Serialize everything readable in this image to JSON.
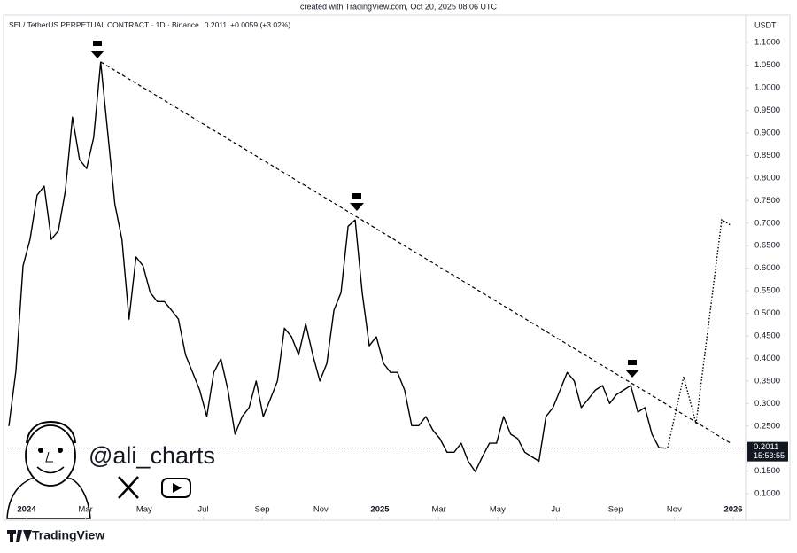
{
  "chart_data": {
    "type": "line",
    "header": "created with TradingView.com, Oct 20, 2025 08:06 UTC",
    "title": "SEI / TetherUS PERPETUAL CONTRACT · 1D · Binance",
    "last_price": 0.2011,
    "change": "+0.0059 (+3.02%)",
    "countdown": "15:53:55",
    "y_label": "USDT",
    "watermark": "@ali_charts",
    "brand": "TradingView",
    "color": "#000000",
    "x": [
      2023.95,
      2023.97,
      2023.99,
      2024.01,
      2024.03,
      2024.05,
      2024.07,
      2024.09,
      2024.11,
      2024.13,
      2024.15,
      2024.17,
      2024.19,
      2024.21,
      2024.23,
      2024.25,
      2024.27,
      2024.29,
      2024.31,
      2024.33,
      2024.35,
      2024.37,
      2024.39,
      2024.41,
      2024.43,
      2024.45,
      2024.47,
      2024.49,
      2024.51,
      2024.53,
      2024.55,
      2024.57,
      2024.59,
      2024.61,
      2024.63,
      2024.65,
      2024.67,
      2024.69,
      2024.71,
      2024.73,
      2024.75,
      2024.77,
      2024.79,
      2024.81,
      2024.83,
      2024.85,
      2024.87,
      2024.89,
      2024.91,
      2024.93,
      2024.95,
      2024.97,
      2024.99,
      2025.01,
      2025.03,
      2025.05,
      2025.07,
      2025.09,
      2025.11,
      2025.13,
      2025.15,
      2025.17,
      2025.19,
      2025.21,
      2025.23,
      2025.25,
      2025.27,
      2025.29,
      2025.31,
      2025.33,
      2025.35,
      2025.37,
      2025.39,
      2025.41,
      2025.43,
      2025.45,
      2025.47,
      2025.49,
      2025.51,
      2025.53,
      2025.55,
      2025.57,
      2025.59,
      2025.61,
      2025.63,
      2025.65,
      2025.67,
      2025.69,
      2025.71,
      2025.73,
      2025.75,
      2025.77,
      2025.79,
      2025.81
    ],
    "values": [
      0.25,
      0.373,
      0.605,
      0.664,
      0.762,
      0.782,
      0.664,
      0.683,
      0.772,
      0.935,
      0.841,
      0.821,
      0.89,
      1.057,
      0.9,
      0.742,
      0.664,
      0.487,
      0.625,
      0.605,
      0.546,
      0.526,
      0.526,
      0.507,
      0.487,
      0.408,
      0.369,
      0.33,
      0.271,
      0.369,
      0.399,
      0.33,
      0.232,
      0.271,
      0.291,
      0.35,
      0.271,
      0.31,
      0.35,
      0.467,
      0.448,
      0.408,
      0.477,
      0.408,
      0.35,
      0.389,
      0.507,
      0.546,
      0.693,
      0.707,
      0.546,
      0.428,
      0.448,
      0.389,
      0.369,
      0.369,
      0.33,
      0.251,
      0.251,
      0.271,
      0.241,
      0.222,
      0.192,
      0.192,
      0.212,
      0.172,
      0.149,
      0.182,
      0.212,
      0.212,
      0.271,
      0.232,
      0.222,
      0.192,
      0.182,
      0.172,
      0.271,
      0.291,
      0.33,
      0.369,
      0.35,
      0.291,
      0.31,
      0.33,
      0.34,
      0.3,
      0.32,
      0.33,
      0.34,
      0.281,
      0.291,
      0.232,
      0.202,
      0.2011
    ],
    "xlim": [
      2023.945,
      2026.03
    ],
    "xticks": [
      {
        "value": 2024,
        "label": "2024"
      },
      {
        "value": 2024.167,
        "label": "Mar"
      },
      {
        "value": 2024.333,
        "label": "May"
      },
      {
        "value": 2024.5,
        "label": "Jul"
      },
      {
        "value": 2024.667,
        "label": "Sep"
      },
      {
        "value": 2024.833,
        "label": "Nov"
      },
      {
        "value": 2025,
        "label": "2025"
      },
      {
        "value": 2025.167,
        "label": "Mar"
      },
      {
        "value": 2025.333,
        "label": "May"
      },
      {
        "value": 2025.5,
        "label": "Jul"
      },
      {
        "value": 2025.667,
        "label": "Sep"
      },
      {
        "value": 2025.833,
        "label": "Nov"
      },
      {
        "value": 2026,
        "label": "2026"
      }
    ],
    "ylim": [
      0.055,
      1.126
    ],
    "yticks": [
      {
        "value": 0.1,
        "label": "0.1000"
      },
      {
        "value": 0.15,
        "label": "0.1500"
      },
      {
        "value": 0.25,
        "label": "0.2500"
      },
      {
        "value": 0.3,
        "label": "0.3000"
      },
      {
        "value": 0.35,
        "label": "0.3500"
      },
      {
        "value": 0.4,
        "label": "0.4000"
      },
      {
        "value": 0.45,
        "label": "0.4500"
      },
      {
        "value": 0.5,
        "label": "0.5000"
      },
      {
        "value": 0.55,
        "label": "0.5500"
      },
      {
        "value": 0.6,
        "label": "0.6000"
      },
      {
        "value": 0.65,
        "label": "0.6500"
      },
      {
        "value": 0.7,
        "label": "0.7000"
      },
      {
        "value": 0.75,
        "label": "0.7500"
      },
      {
        "value": 0.8,
        "label": "0.8000"
      },
      {
        "value": 0.85,
        "label": "0.8500"
      },
      {
        "value": 0.9,
        "label": "0.9000"
      },
      {
        "value": 0.95,
        "label": "0.9500"
      },
      {
        "value": 1,
        "label": "1.0000"
      },
      {
        "value": 1.05,
        "label": "1.0500"
      },
      {
        "value": 1.1,
        "label": "1.1000"
      }
    ]
  }
}
